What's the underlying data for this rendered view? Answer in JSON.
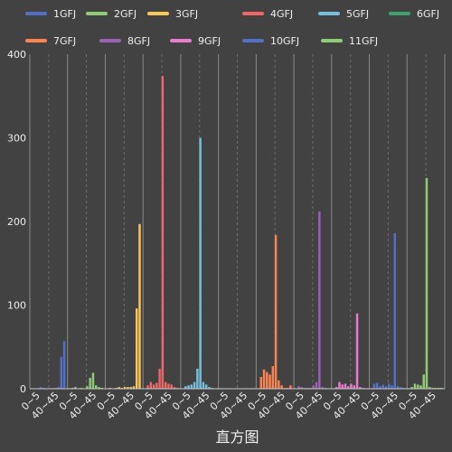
{
  "chart_data": {
    "type": "bar",
    "xlabel": "直方图",
    "ylabel": "",
    "ylim": [
      0,
      400
    ],
    "yticks": [
      0,
      100,
      200,
      300,
      400
    ],
    "legend_position": "top",
    "grid": true,
    "tick_labels": [
      "0~5",
      "40~45"
    ],
    "background": "#424242",
    "series": [
      {
        "name": "1GFJ",
        "color": "#5470c6",
        "values": [
          0,
          0,
          2,
          1,
          0,
          0,
          0,
          1,
          2,
          38,
          57
        ]
      },
      {
        "name": "2GFJ",
        "color": "#91cc75",
        "values": [
          1,
          2,
          0,
          1,
          0,
          3,
          13,
          19,
          4,
          2,
          1
        ]
      },
      {
        "name": "3GFJ",
        "color": "#fac858",
        "values": [
          1,
          0,
          1,
          2,
          1,
          2,
          2,
          2,
          3,
          96,
          197
        ]
      },
      {
        "name": "4GFJ",
        "color": "#ee6666",
        "values": [
          4,
          8,
          5,
          7,
          24,
          374,
          8,
          6,
          5,
          2,
          1
        ]
      },
      {
        "name": "5GFJ",
        "color": "#73c0de",
        "values": [
          3,
          4,
          5,
          8,
          24,
          300,
          8,
          5,
          2,
          1,
          0
        ]
      },
      {
        "name": "6GFJ",
        "color": "#3ba272",
        "values": [
          0,
          0,
          0,
          0,
          0,
          0,
          0,
          0,
          0,
          0,
          0
        ]
      },
      {
        "name": "7GFJ",
        "color": "#fc8452",
        "values": [
          14,
          23,
          20,
          17,
          27,
          184,
          10,
          4,
          1,
          1,
          4
        ]
      },
      {
        "name": "8GFJ",
        "color": "#9a60b4",
        "values": [
          3,
          2,
          1,
          1,
          1,
          4,
          8,
          212,
          2,
          1,
          0
        ]
      },
      {
        "name": "9GFJ",
        "color": "#ea7ccc",
        "values": [
          2,
          8,
          5,
          6,
          3,
          6,
          4,
          90,
          2,
          1,
          0
        ]
      },
      {
        "name": "10GFJ",
        "color": "#5470c6",
        "values": [
          6,
          7,
          3,
          5,
          3,
          6,
          4,
          186,
          3,
          2,
          1
        ]
      },
      {
        "name": "11GFJ",
        "color": "#91cc75",
        "values": [
          2,
          6,
          5,
          4,
          17,
          252,
          2,
          1,
          1,
          1,
          1
        ]
      }
    ]
  }
}
